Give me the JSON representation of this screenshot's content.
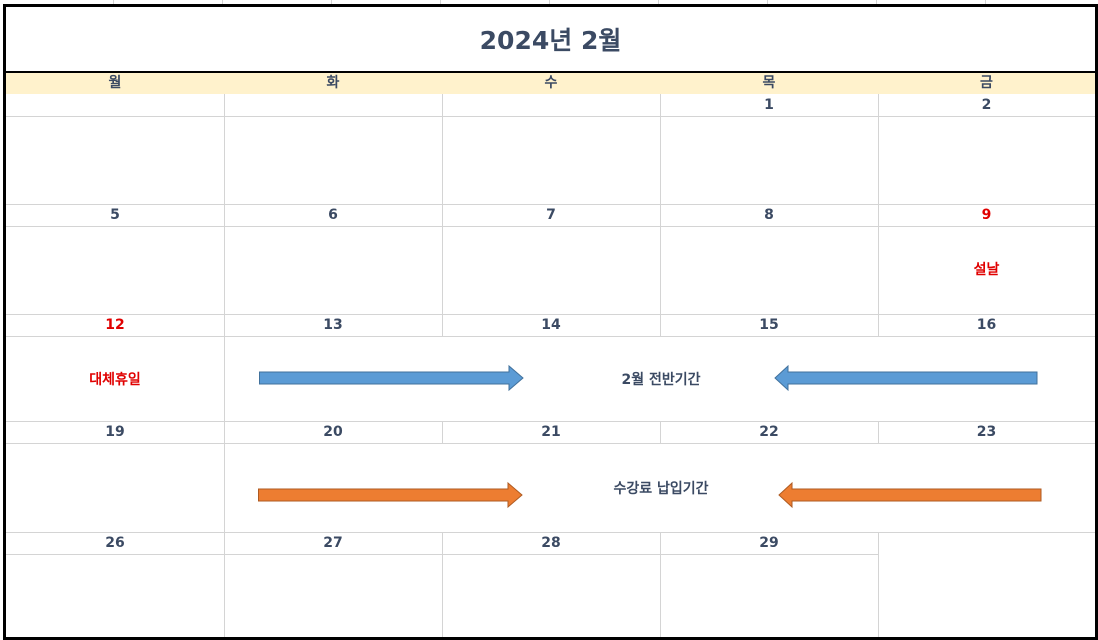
{
  "calendar": {
    "title": "2024년 2월",
    "weekdays": [
      "월",
      "화",
      "수",
      "목",
      "금"
    ],
    "weeks": [
      [
        "",
        "",
        "",
        "1",
        "2"
      ],
      [
        "5",
        "6",
        "7",
        "8",
        "9"
      ],
      [
        "12",
        "13",
        "14",
        "15",
        "16"
      ],
      [
        "19",
        "20",
        "21",
        "22",
        "23"
      ],
      [
        "26",
        "27",
        "28",
        "29",
        ""
      ]
    ],
    "holidays": [
      {
        "date": "9",
        "name": "설날"
      },
      {
        "date": "12",
        "name": "대체휴일"
      }
    ],
    "periods": [
      {
        "label": "2월 전반기간",
        "arrow_color": "#5b9bd5"
      },
      {
        "label": "수강료 납입기간",
        "arrow_color": "#ed7d31"
      }
    ],
    "colors": {
      "header_bg": "#fff2cc",
      "text": "#3b4a63",
      "holiday": "#e00000",
      "grid": "#d4d4d4"
    }
  }
}
